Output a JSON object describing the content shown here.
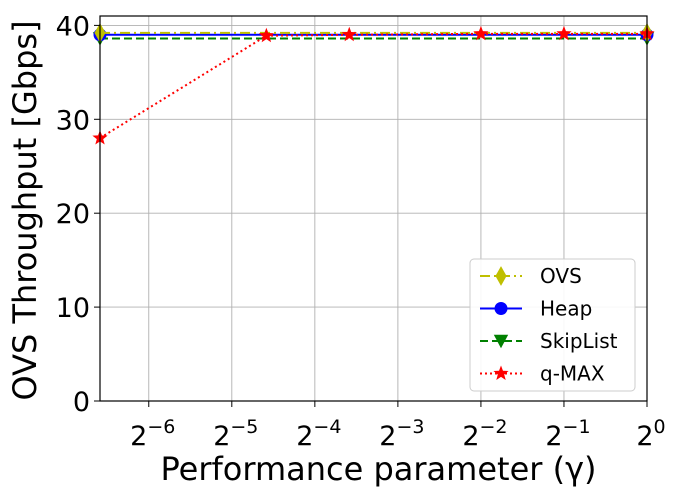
{
  "chart_data": {
    "type": "line",
    "title": "",
    "xlabel": "Performance parameter (γ)",
    "ylabel": "OVS Throughput [Gbps]",
    "x_scale": "log2",
    "x_tick_exponents": [
      -6,
      -5,
      -4,
      -3,
      -2,
      -1,
      0
    ],
    "x_tick_base": "2",
    "xlim": [
      0.0104,
      1
    ],
    "ylim": [
      0,
      41
    ],
    "y_ticks": [
      0,
      10,
      20,
      30,
      40
    ],
    "grid": true,
    "legend_position": "lower-right",
    "series": [
      {
        "name": "OVS",
        "color": "#bfbf00",
        "linestyle": "dashdot",
        "marker": "diamond",
        "points": [
          {
            "x": 0.0104,
            "y": 39.2
          },
          {
            "x": 1,
            "y": 39.2
          }
        ]
      },
      {
        "name": "Heap",
        "color": "#0000ff",
        "linestyle": "solid",
        "marker": "circle",
        "points": [
          {
            "x": 0.0104,
            "y": 39.0
          },
          {
            "x": 1,
            "y": 39.0
          }
        ]
      },
      {
        "name": "SkipList",
        "color": "#008000",
        "linestyle": "dashed",
        "marker": "triangle-down",
        "points": [
          {
            "x": 0.0104,
            "y": 38.6
          },
          {
            "x": 1,
            "y": 38.6
          }
        ]
      },
      {
        "name": "q-MAX",
        "color": "#ff0000",
        "linestyle": "dotted",
        "marker": "star",
        "points": [
          {
            "x": 0.0104,
            "y": 28.0
          },
          {
            "x": 0.0417,
            "y": 38.9
          },
          {
            "x": 0.0833,
            "y": 39.0
          },
          {
            "x": 0.25,
            "y": 39.1
          },
          {
            "x": 0.5,
            "y": 39.1
          },
          {
            "x": 1,
            "y": 39.1
          }
        ]
      }
    ]
  }
}
